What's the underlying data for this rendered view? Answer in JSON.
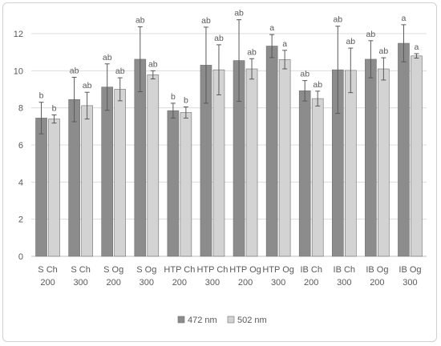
{
  "chart_data": {
    "type": "bar",
    "ylim": [
      0,
      12
    ],
    "yticks": [
      0,
      2,
      4,
      6,
      8,
      10,
      12
    ],
    "grid": true,
    "legend_position": "bottom",
    "categories": [
      [
        "S Ch",
        "200"
      ],
      [
        "S Ch",
        "300"
      ],
      [
        "S Og",
        "200"
      ],
      [
        "S Og",
        "300"
      ],
      [
        "HTP Ch",
        "200"
      ],
      [
        "HTP Ch",
        "300"
      ],
      [
        "HTP Og",
        "200"
      ],
      [
        "HTP Og",
        "300"
      ],
      [
        "IB Ch",
        "200"
      ],
      [
        "IB Ch",
        "300"
      ],
      [
        "IB Og",
        "200"
      ],
      [
        "IB Og",
        "300"
      ]
    ],
    "series": [
      {
        "name": "472 nm",
        "color": "#8c8c8c",
        "values": [
          7.45,
          8.45,
          9.12,
          10.62,
          7.85,
          10.3,
          10.55,
          11.33,
          8.92,
          10.05,
          10.62,
          11.48
        ],
        "errors": [
          0.85,
          1.2,
          1.25,
          1.75,
          0.4,
          2.05,
          2.2,
          0.62,
          0.55,
          2.35,
          1.0,
          1.0
        ],
        "labels": [
          "b",
          "ab",
          "ab",
          "ab",
          "b",
          "ab",
          "ab",
          "a",
          "ab",
          "ab",
          "ab",
          "a"
        ]
      },
      {
        "name": "502 nm",
        "color": "#d3d3d3",
        "values": [
          7.4,
          8.12,
          9.0,
          9.78,
          7.75,
          10.05,
          10.1,
          10.6,
          8.5,
          10.02,
          10.1,
          10.8
        ],
        "errors": [
          0.22,
          0.72,
          0.62,
          0.22,
          0.3,
          1.35,
          0.55,
          0.5,
          0.4,
          1.2,
          0.6,
          0.12
        ],
        "labels": [
          "b",
          "ab",
          "ab",
          "ab",
          "b",
          "ab",
          "ab",
          "a",
          "ab",
          "ab",
          "ab",
          "a"
        ]
      }
    ]
  }
}
